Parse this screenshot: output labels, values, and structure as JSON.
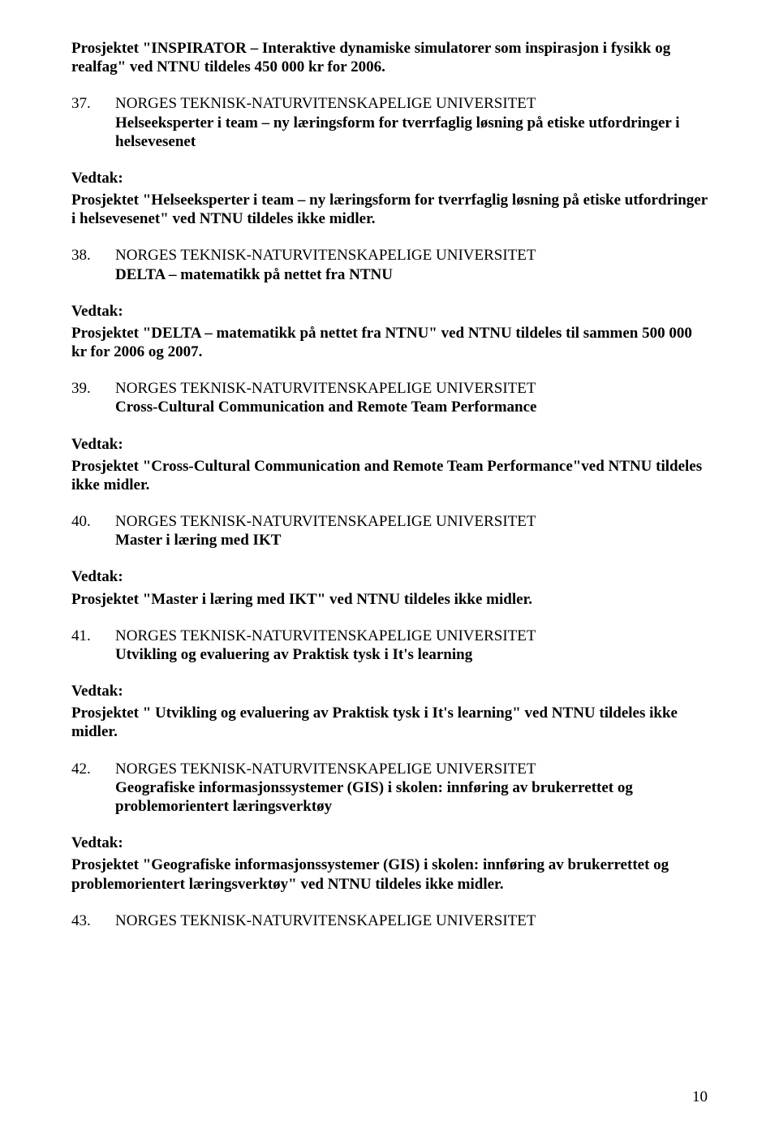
{
  "intro_bold": "Prosjektet \"INSPIRATOR – Interaktive dynamiske simulatorer som inspirasjon i fysikk og realfag\" ved NTNU tildeles 450 000 kr for 2006.",
  "items": [
    {
      "num": "37.",
      "org": "NORGES TEKNISK-NATURVITENSKAPELIGE UNIVERSITET",
      "title": "Helseeksperter i team – ny læringsform for tverrfaglig løsning på etiske utfordringer i helsevesenet",
      "vedtak_label": "Vedtak:",
      "vedtak_body": "Prosjektet \"Helseeksperter i team – ny læringsform for tverrfaglig løsning på etiske utfordringer i helsevesenet\" ved NTNU tildeles ikke midler."
    },
    {
      "num": "38.",
      "org": "NORGES TEKNISK-NATURVITENSKAPELIGE UNIVERSITET",
      "title": "DELTA – matematikk på nettet fra NTNU",
      "vedtak_label": "Vedtak:",
      "vedtak_body": "Prosjektet \"DELTA – matematikk på nettet fra NTNU\" ved NTNU tildeles til sammen 500 000 kr for 2006 og 2007."
    },
    {
      "num": "39.",
      "org": "NORGES TEKNISK-NATURVITENSKAPELIGE UNIVERSITET",
      "title": "Cross-Cultural Communication and Remote Team Performance",
      "vedtak_label": "Vedtak:",
      "vedtak_body": "Prosjektet \"Cross-Cultural Communication and Remote Team Performance\"ved NTNU tildeles ikke midler."
    },
    {
      "num": "40.",
      "org": "NORGES TEKNISK-NATURVITENSKAPELIGE UNIVERSITET",
      "title": "Master i læring med IKT",
      "vedtak_label": "Vedtak:",
      "vedtak_body": "Prosjektet \"Master i læring med IKT\" ved NTNU tildeles ikke midler."
    },
    {
      "num": "41.",
      "org": "NORGES TEKNISK-NATURVITENSKAPELIGE UNIVERSITET",
      "title": "Utvikling og evaluering av Praktisk tysk i It's learning",
      "vedtak_label": "Vedtak:",
      "vedtak_body": "Prosjektet \" Utvikling og evaluering av Praktisk tysk i It's learning\" ved NTNU tildeles ikke midler."
    },
    {
      "num": "42.",
      "org": "NORGES TEKNISK-NATURVITENSKAPELIGE UNIVERSITET",
      "title": "Geografiske informasjonssystemer (GIS) i skolen: innføring av brukerrettet og problemorientert læringsverktøy",
      "vedtak_label": "Vedtak:",
      "vedtak_body": "Prosjektet \"Geografiske informasjonssystemer (GIS) i skolen: innføring av brukerrettet og problemorientert læringsverktøy\" ved NTNU tildeles ikke midler."
    },
    {
      "num": "43.",
      "org": "NORGES TEKNISK-NATURVITENSKAPELIGE UNIVERSITET",
      "title": "",
      "vedtak_label": "",
      "vedtak_body": ""
    }
  ],
  "page_number": "10"
}
